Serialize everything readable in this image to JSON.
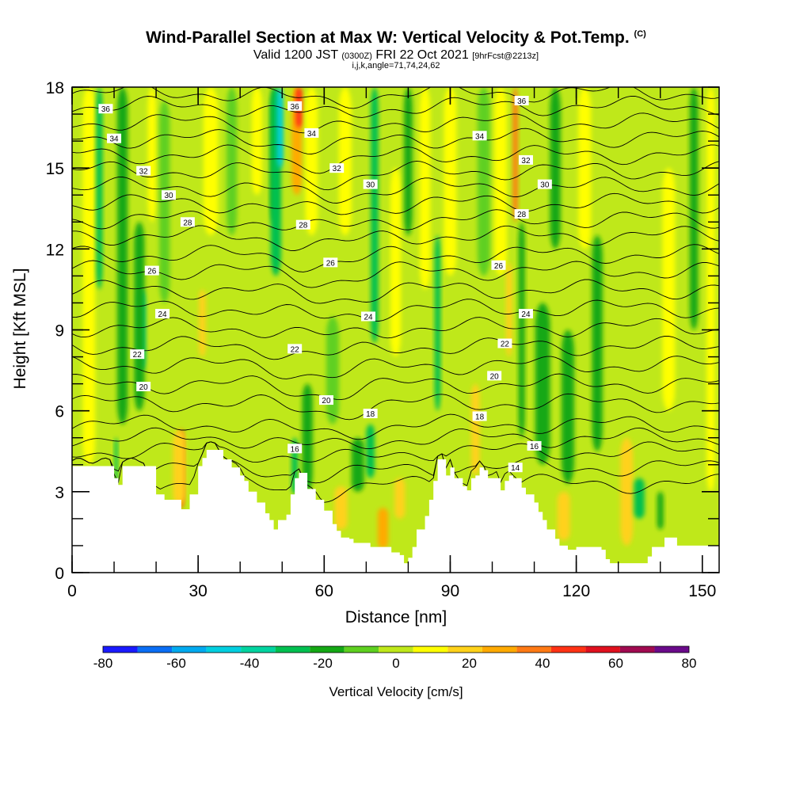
{
  "header": {
    "title": "Wind-Parallel Section at Max W: Vertical Velocity & Pot.Temp.",
    "title_mark": "(C)",
    "valid_prefix": "Valid 1200 JST",
    "valid_utc": "(0300Z)",
    "valid_date": "FRI 22 Oct 2021",
    "forecast": "[9hrFcst@2213z]",
    "grid_info": "i,j,k,angle=71,74,24,62"
  },
  "chart_data": {
    "type": "heatmap",
    "xlabel": "Distance [nm]",
    "ylabel": "Height [Kft MSL]",
    "xlim": [
      0,
      154
    ],
    "ylim": [
      0,
      18
    ],
    "x_ticks": [
      0,
      30,
      60,
      90,
      120,
      150
    ],
    "y_ticks": [
      0,
      3,
      6,
      9,
      12,
      15,
      18
    ],
    "x_ticks_minor_step": 10,
    "y_ticks_minor_step": 1,
    "background_value": 0,
    "colorbar": {
      "label": "Vertical Velocity [cm/s]",
      "ticks": [
        -80,
        -60,
        -40,
        -20,
        0,
        20,
        40,
        60,
        80
      ],
      "bounds": [
        -80,
        -70,
        -60,
        -50,
        -40,
        -30,
        -20,
        -10,
        0,
        10,
        20,
        30,
        40,
        50,
        60,
        70,
        80
      ],
      "colors": [
        "#1a1aff",
        "#0a6ef5",
        "#00aaf0",
        "#00cfe0",
        "#00d4a0",
        "#00c050",
        "#14a814",
        "#5ed020",
        "#bfe81a",
        "#ffff00",
        "#ffd21a",
        "#ffaa00",
        "#ff7a14",
        "#ff3214",
        "#e0101e",
        "#a00a50",
        "#6a0a8a"
      ]
    },
    "terrain_kft": [
      [
        0,
        3.95
      ],
      [
        9,
        3.95
      ],
      [
        10,
        3.5
      ],
      [
        11,
        3.25
      ],
      [
        12,
        3.95
      ],
      [
        17,
        3.95
      ],
      [
        20,
        2.9
      ],
      [
        22,
        2.7
      ],
      [
        24,
        2.7
      ],
      [
        26,
        2.35
      ],
      [
        28,
        2.9
      ],
      [
        30,
        3.95
      ],
      [
        31,
        4.25
      ],
      [
        32,
        4.55
      ],
      [
        34,
        4.55
      ],
      [
        36,
        4.2
      ],
      [
        38,
        3.9
      ],
      [
        40,
        3.6
      ],
      [
        41,
        3.4
      ],
      [
        42,
        3.0
      ],
      [
        44,
        2.6
      ],
      [
        46,
        2.2
      ],
      [
        47,
        1.95
      ],
      [
        48,
        1.6
      ],
      [
        49,
        1.95
      ],
      [
        51,
        2.15
      ],
      [
        52,
        2.9
      ],
      [
        53,
        3.5
      ],
      [
        54,
        3.7
      ],
      [
        56,
        3.1
      ],
      [
        58,
        2.7
      ],
      [
        60,
        2.3
      ],
      [
        62,
        1.8
      ],
      [
        63,
        1.55
      ],
      [
        64,
        1.3
      ],
      [
        66,
        1.25
      ],
      [
        67,
        1.1
      ],
      [
        71,
        0.95
      ],
      [
        74,
        0.95
      ],
      [
        76,
        0.75
      ],
      [
        78,
        0.65
      ],
      [
        79,
        0.35
      ],
      [
        80,
        0.55
      ],
      [
        81,
        0.95
      ],
      [
        82,
        1.6
      ],
      [
        84,
        2.1
      ],
      [
        85,
        2.7
      ],
      [
        86,
        3.4
      ],
      [
        87,
        4.2
      ],
      [
        88,
        4.2
      ],
      [
        89,
        3.6
      ],
      [
        90,
        3.9
      ],
      [
        91,
        3.5
      ],
      [
        93,
        3.2
      ],
      [
        94,
        3.05
      ],
      [
        95,
        3.5
      ],
      [
        96,
        3.6
      ],
      [
        97,
        3.9
      ],
      [
        98,
        3.8
      ],
      [
        99,
        3.5
      ],
      [
        101,
        3.5
      ],
      [
        102,
        3.05
      ],
      [
        103,
        3.4
      ],
      [
        104,
        3.6
      ],
      [
        105,
        3.5
      ],
      [
        107,
        3.15
      ],
      [
        108,
        2.9
      ],
      [
        110,
        2.6
      ],
      [
        111,
        2.25
      ],
      [
        112,
        1.95
      ],
      [
        113,
        1.6
      ],
      [
        115,
        1.25
      ],
      [
        116,
        1.0
      ],
      [
        118,
        0.85
      ],
      [
        120,
        0.95
      ],
      [
        121,
        0.95
      ],
      [
        126,
        0.85
      ],
      [
        127,
        0.5
      ],
      [
        128,
        0.35
      ],
      [
        135,
        0.35
      ],
      [
        137,
        0.6
      ],
      [
        138,
        0.95
      ],
      [
        139,
        0.95
      ],
      [
        141,
        1.3
      ],
      [
        143,
        1.3
      ],
      [
        144,
        1.0
      ],
      [
        154,
        1.0
      ]
    ],
    "velocity_features": [
      {
        "x": 4,
        "ylo": 4.0,
        "yhi": 18,
        "w": 3.0,
        "v": 18
      },
      {
        "x": 6.5,
        "ylo": 10.5,
        "yhi": 18,
        "w": 1.5,
        "v": -22
      },
      {
        "x": 12,
        "ylo": 5.5,
        "yhi": 18,
        "w": 2.5,
        "v": -12
      },
      {
        "x": 10.5,
        "ylo": 3.3,
        "yhi": 5.0,
        "w": 0.8,
        "v": -22
      },
      {
        "x": 16.5,
        "ylo": 7.5,
        "yhi": 10.5,
        "w": 1.8,
        "v": -40
      },
      {
        "x": 16,
        "ylo": 6.0,
        "yhi": 13.0,
        "w": 2.5,
        "v": -15
      },
      {
        "x": 19,
        "ylo": 13.0,
        "yhi": 18,
        "w": 2.0,
        "v": 15
      },
      {
        "x": 22,
        "ylo": 10.0,
        "yhi": 17.5,
        "w": 2.5,
        "v": -10
      },
      {
        "x": 26,
        "ylo": 2.4,
        "yhi": 5.3,
        "w": 1.2,
        "v": 52
      },
      {
        "x": 25.5,
        "ylo": 2.5,
        "yhi": 5.3,
        "w": 3.0,
        "v": 25
      },
      {
        "x": 31,
        "ylo": 8.0,
        "yhi": 10.5,
        "w": 1.6,
        "v": 28
      },
      {
        "x": 33,
        "ylo": 12.5,
        "yhi": 18,
        "w": 3.5,
        "v": 14
      },
      {
        "x": 38,
        "ylo": 12.5,
        "yhi": 18,
        "w": 2.5,
        "v": -10
      },
      {
        "x": 44,
        "ylo": 14.0,
        "yhi": 18,
        "w": 2.5,
        "v": 14
      },
      {
        "x": 48,
        "ylo": 13.0,
        "yhi": 18,
        "w": 1.5,
        "v": -15
      },
      {
        "x": 48.5,
        "ylo": 11.0,
        "yhi": 18,
        "w": 2.5,
        "v": -22
      },
      {
        "x": 49.5,
        "ylo": 15.0,
        "yhi": 18,
        "w": 1.4,
        "v": -45
      },
      {
        "x": 53.5,
        "ylo": 14.0,
        "yhi": 18,
        "w": 2.5,
        "v": 32
      },
      {
        "x": 54,
        "ylo": 16.5,
        "yhi": 18,
        "w": 1.5,
        "v": 52
      },
      {
        "x": 57,
        "ylo": 12.5,
        "yhi": 18,
        "w": 3.0,
        "v": 14
      },
      {
        "x": 56,
        "ylo": 3.0,
        "yhi": 7.0,
        "w": 2.5,
        "v": -18
      },
      {
        "x": 53,
        "ylo": 2.9,
        "yhi": 5.0,
        "w": 1.5,
        "v": -25
      },
      {
        "x": 62,
        "ylo": 5.5,
        "yhi": 9.5,
        "w": 3.0,
        "v": -10
      },
      {
        "x": 64,
        "ylo": 1.6,
        "yhi": 3.2,
        "w": 3.0,
        "v": 28
      },
      {
        "x": 65,
        "ylo": 12.5,
        "yhi": 18,
        "w": 3.0,
        "v": 14
      },
      {
        "x": 68,
        "ylo": 3.0,
        "yhi": 5.0,
        "w": 3.0,
        "v": -12
      },
      {
        "x": 72,
        "ylo": 8.5,
        "yhi": 18,
        "w": 1.8,
        "v": -25
      },
      {
        "x": 71,
        "ylo": 3.5,
        "yhi": 5.5,
        "w": 2.0,
        "v": -22
      },
      {
        "x": 74,
        "ylo": 0.9,
        "yhi": 2.4,
        "w": 2.5,
        "v": 38
      },
      {
        "x": 77,
        "ylo": 8.0,
        "yhi": 15.0,
        "w": 2.5,
        "v": 14
      },
      {
        "x": 78,
        "ylo": 2.0,
        "yhi": 3.5,
        "w": 2.5,
        "v": 22
      },
      {
        "x": 80,
        "ylo": 12.5,
        "yhi": 18,
        "w": 2.0,
        "v": -12
      },
      {
        "x": 84,
        "ylo": 10.5,
        "yhi": 18,
        "w": 2.5,
        "v": 16
      },
      {
        "x": 87,
        "ylo": 6.0,
        "yhi": 12.5,
        "w": 1.4,
        "v": -22
      },
      {
        "x": 90,
        "ylo": 11.0,
        "yhi": 18,
        "w": 3.0,
        "v": 16
      },
      {
        "x": 96,
        "ylo": 3.6,
        "yhi": 7.0,
        "w": 2.0,
        "v": 22
      },
      {
        "x": 98,
        "ylo": 11.0,
        "yhi": 18,
        "w": 3.0,
        "v": -8
      },
      {
        "x": 102,
        "ylo": 11.0,
        "yhi": 18,
        "w": 3.0,
        "v": 18
      },
      {
        "x": 105.5,
        "ylo": 13.0,
        "yhi": 18,
        "w": 1.2,
        "v": 48
      },
      {
        "x": 104,
        "ylo": 8.0,
        "yhi": 11.5,
        "w": 1.4,
        "v": 28
      },
      {
        "x": 107,
        "ylo": 5.0,
        "yhi": 13.0,
        "w": 1.5,
        "v": -12
      },
      {
        "x": 112,
        "ylo": 4.0,
        "yhi": 10.0,
        "w": 3.5,
        "v": -12
      },
      {
        "x": 115,
        "ylo": 12.0,
        "yhi": 18,
        "w": 2.5,
        "v": -16
      },
      {
        "x": 118,
        "ylo": 3.3,
        "yhi": 9.0,
        "w": 3.0,
        "v": -12
      },
      {
        "x": 117,
        "ylo": 1.2,
        "yhi": 3.0,
        "w": 3.0,
        "v": 24
      },
      {
        "x": 122,
        "ylo": 12.0,
        "yhi": 18,
        "w": 3.0,
        "v": 14
      },
      {
        "x": 125,
        "ylo": 4.5,
        "yhi": 12.5,
        "w": 2.5,
        "v": -12
      },
      {
        "x": 132,
        "ylo": 1.0,
        "yhi": 5.0,
        "w": 3.0,
        "v": 24
      },
      {
        "x": 135,
        "ylo": 2.0,
        "yhi": 3.5,
        "w": 2.5,
        "v": -22
      },
      {
        "x": 140,
        "ylo": 1.6,
        "yhi": 3.0,
        "w": 1.5,
        "v": -18
      },
      {
        "x": 142,
        "ylo": 6.0,
        "yhi": 15.0,
        "w": 3.0,
        "v": 16
      },
      {
        "x": 148,
        "ylo": 9.0,
        "yhi": 18,
        "w": 2.0,
        "v": -12
      },
      {
        "x": 152,
        "ylo": 3.0,
        "yhi": 18,
        "w": 2.0,
        "v": 14
      }
    ],
    "isentropes": {
      "base_heights_kft": [
        [
          14,
          3.3
        ],
        [
          15,
          3.9
        ],
        [
          16,
          4.5
        ],
        [
          17,
          5.0
        ],
        [
          18,
          5.5
        ],
        [
          19,
          6.3
        ],
        [
          20,
          7.0
        ],
        [
          21,
          7.7
        ],
        [
          22,
          8.4
        ],
        [
          23,
          9.1
        ],
        [
          24,
          9.8
        ],
        [
          25,
          10.5
        ],
        [
          26,
          11.2
        ],
        [
          27,
          11.8
        ],
        [
          28,
          12.5
        ],
        [
          29,
          13.1
        ],
        [
          30,
          13.7
        ],
        [
          31,
          14.3
        ],
        [
          32,
          14.9
        ],
        [
          33,
          15.5
        ],
        [
          34,
          16.1
        ],
        [
          35,
          16.7
        ],
        [
          36,
          17.3
        ],
        [
          37,
          17.8
        ]
      ],
      "labels": [
        {
          "theta": 36,
          "x": 8,
          "y": 17.2
        },
        {
          "theta": 34,
          "x": 10,
          "y": 16.1
        },
        {
          "theta": 32,
          "x": 17,
          "y": 14.9
        },
        {
          "theta": 30,
          "x": 23,
          "y": 14.0
        },
        {
          "theta": 28,
          "x": 27.5,
          "y": 13.0
        },
        {
          "theta": 26,
          "x": 19,
          "y": 11.2
        },
        {
          "theta": 24,
          "x": 21.5,
          "y": 9.6
        },
        {
          "theta": 22,
          "x": 15.5,
          "y": 8.1
        },
        {
          "theta": 20,
          "x": 17,
          "y": 6.9
        },
        {
          "theta": 36,
          "x": 53,
          "y": 17.3
        },
        {
          "theta": 34,
          "x": 57,
          "y": 16.3
        },
        {
          "theta": 32,
          "x": 63,
          "y": 15.0
        },
        {
          "theta": 30,
          "x": 71,
          "y": 14.4
        },
        {
          "theta": 28,
          "x": 55,
          "y": 12.9
        },
        {
          "theta": 26,
          "x": 61.5,
          "y": 11.5
        },
        {
          "theta": 24,
          "x": 70.5,
          "y": 9.5
        },
        {
          "theta": 22,
          "x": 53,
          "y": 8.3
        },
        {
          "theta": 20,
          "x": 60.5,
          "y": 6.4
        },
        {
          "theta": 18,
          "x": 71,
          "y": 5.9
        },
        {
          "theta": 16,
          "x": 53,
          "y": 4.6
        },
        {
          "theta": 36,
          "x": 107,
          "y": 17.5
        },
        {
          "theta": 34,
          "x": 97,
          "y": 16.2
        },
        {
          "theta": 32,
          "x": 108,
          "y": 15.3
        },
        {
          "theta": 30,
          "x": 112.5,
          "y": 14.4
        },
        {
          "theta": 28,
          "x": 107,
          "y": 13.3
        },
        {
          "theta": 26,
          "x": 101.5,
          "y": 11.4
        },
        {
          "theta": 24,
          "x": 108,
          "y": 9.6
        },
        {
          "theta": 22,
          "x": 103,
          "y": 8.5
        },
        {
          "theta": 20,
          "x": 100.5,
          "y": 7.3
        },
        {
          "theta": 18,
          "x": 97,
          "y": 5.8
        },
        {
          "theta": 16,
          "x": 110,
          "y": 4.7
        },
        {
          "theta": 14,
          "x": 105.5,
          "y": 3.9
        }
      ]
    }
  }
}
